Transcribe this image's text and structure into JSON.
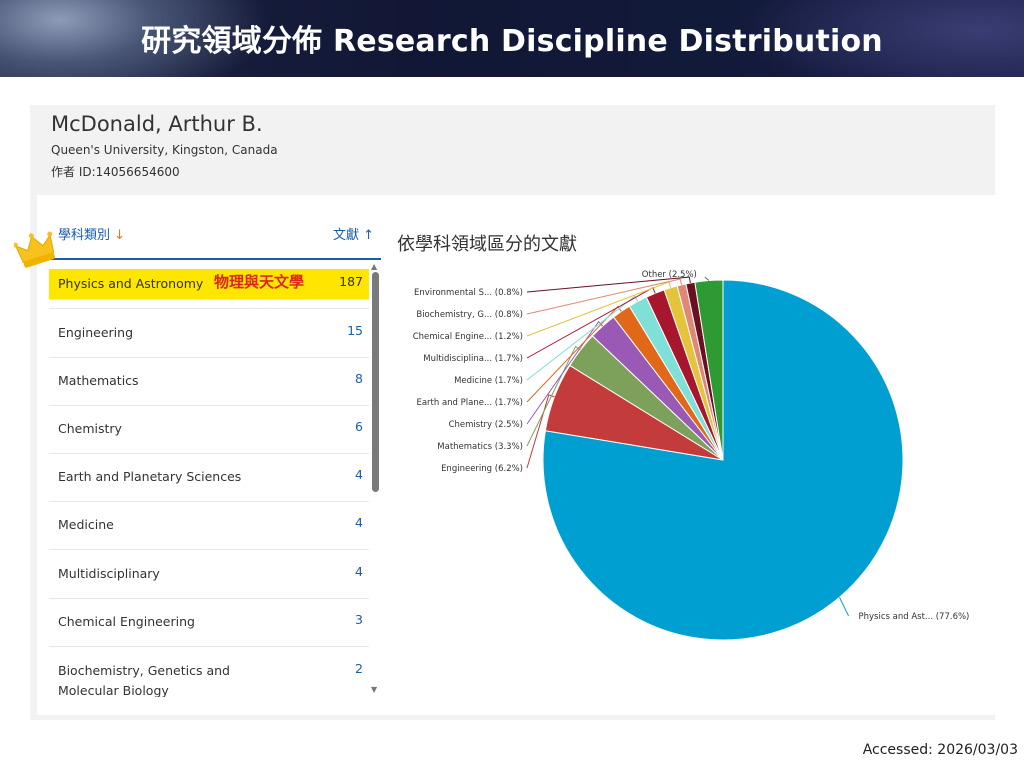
{
  "banner": {
    "title": "研究領域分佈  Research Discipline Distribution"
  },
  "author": {
    "name": "McDonald, Arthur B.",
    "affiliation": "Queen's University, Kingston, Canada",
    "id_line": "作者 ID:14056654600"
  },
  "list": {
    "header_left": "學科類別",
    "header_left_arrow": "↓",
    "header_right": "文獻 ↑",
    "highlight_note": "物理與天文學",
    "items": [
      {
        "label": "Physics and Astronomy",
        "count": "187"
      },
      {
        "label": "Engineering",
        "count": "15"
      },
      {
        "label": "Mathematics",
        "count": "8"
      },
      {
        "label": "Chemistry",
        "count": "6"
      },
      {
        "label": "Earth and Planetary Sciences",
        "count": "4"
      },
      {
        "label": "Medicine",
        "count": "4"
      },
      {
        "label": "Multidisciplinary",
        "count": "4"
      },
      {
        "label": "Chemical Engineering",
        "count": "3"
      },
      {
        "label": "Biochemistry, Genetics and Molecular Biology",
        "count": "2"
      }
    ]
  },
  "chart": {
    "title": "依學科領域區分的文獻"
  },
  "chart_data": {
    "type": "pie",
    "title": "依學科領域區分的文獻",
    "slices": [
      {
        "label": "Physics and Ast... (77.6%)",
        "value": 77.6,
        "color": "#009fd2"
      },
      {
        "label": "Engineering (6.2%)",
        "value": 6.2,
        "color": "#c43b3b"
      },
      {
        "label": "Mathematics (3.3%)",
        "value": 3.3,
        "color": "#7da05a"
      },
      {
        "label": "Chemistry (2.5%)",
        "value": 2.5,
        "color": "#9b59b6"
      },
      {
        "label": "Earth and Plane... (1.7%)",
        "value": 1.7,
        "color": "#e06818"
      },
      {
        "label": "Medicine (1.7%)",
        "value": 1.7,
        "color": "#7fe0d8"
      },
      {
        "label": "Multidisciplina... (1.7%)",
        "value": 1.7,
        "color": "#a8162e"
      },
      {
        "label": "Chemical Engine... (1.2%)",
        "value": 1.2,
        "color": "#e3c43a"
      },
      {
        "label": "Biochemistry, G... (0.8%)",
        "value": 0.8,
        "color": "#e08878"
      },
      {
        "label": "Environmental S... (0.8%)",
        "value": 0.8,
        "color": "#6a1020"
      },
      {
        "label": "Other (2.5%)",
        "value": 2.5,
        "color": "#2e9a34"
      }
    ]
  },
  "footer": {
    "accessed": "Accessed: 2026/03/03"
  },
  "icons": {
    "crown": "crown-icon"
  }
}
